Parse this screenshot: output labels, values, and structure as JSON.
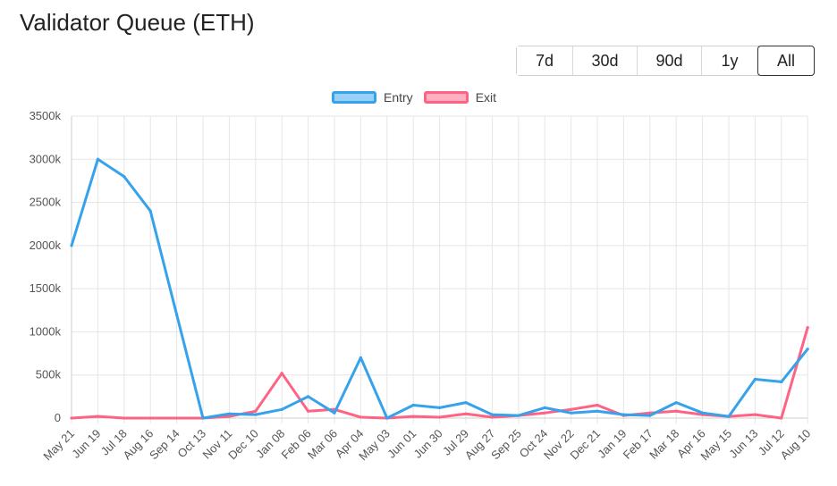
{
  "header": {
    "title": "Validator Queue (ETH)"
  },
  "ranges": [
    {
      "label": "7d",
      "active": false
    },
    {
      "label": "30d",
      "active": false
    },
    {
      "label": "90d",
      "active": false
    },
    {
      "label": "1y",
      "active": false
    },
    {
      "label": "All",
      "active": true
    }
  ],
  "colors": {
    "entry": "#36a2eb",
    "entry_fill": "#9ad0f5",
    "exit": "#ff6384",
    "exit_fill": "#ffb1c1",
    "grid": "#e5e5e5"
  },
  "chart_data": {
    "type": "line",
    "title": "",
    "xlabel": "",
    "ylabel": "",
    "ylim": [
      0,
      3500
    ],
    "yticks": [
      "0",
      "500k",
      "1000k",
      "1500k",
      "2000k",
      "2500k",
      "3000k",
      "3500k"
    ],
    "grid": true,
    "legend_position": "top",
    "categories": [
      "May 21",
      "Jun 19",
      "Jul 18",
      "Aug 16",
      "Sep 14",
      "Oct 13",
      "Nov 11",
      "Dec 10",
      "Jan 08",
      "Feb 06",
      "Mar 06",
      "Apr 04",
      "May 03",
      "Jun 01",
      "Jun 30",
      "Jul 29",
      "Aug 27",
      "Sep 25",
      "Oct 24",
      "Nov 22",
      "Dec 21",
      "Jan 19",
      "Feb 17",
      "Mar 18",
      "Apr 16",
      "May 15",
      "Jun 13",
      "Jul 12",
      "Aug 10"
    ],
    "series": [
      {
        "name": "Entry",
        "values": [
          2000,
          3000,
          2800,
          2400,
          1200,
          0,
          50,
          40,
          100,
          250,
          60,
          700,
          0,
          150,
          120,
          180,
          40,
          30,
          120,
          60,
          80,
          40,
          30,
          180,
          60,
          20,
          450,
          420,
          800
        ]
      },
      {
        "name": "Exit",
        "values": [
          0,
          20,
          0,
          0,
          0,
          0,
          20,
          80,
          520,
          80,
          100,
          10,
          0,
          20,
          10,
          50,
          10,
          30,
          60,
          100,
          150,
          30,
          60,
          80,
          40,
          20,
          40,
          0,
          1050
        ]
      }
    ]
  }
}
